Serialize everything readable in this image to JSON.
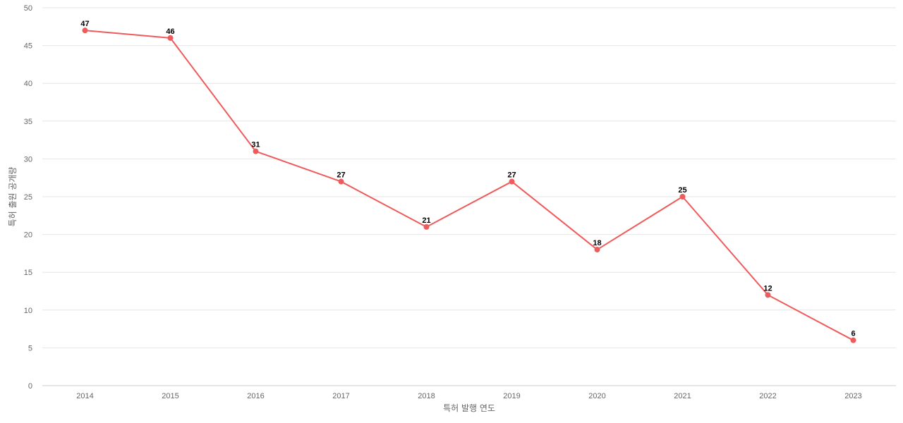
{
  "chart_data": {
    "type": "line",
    "title": "",
    "xlabel": "특허 발행 연도",
    "ylabel": "특허 출원 공개량",
    "x": [
      "2014",
      "2015",
      "2016",
      "2017",
      "2018",
      "2019",
      "2020",
      "2021",
      "2022",
      "2023"
    ],
    "series": [
      {
        "values": [
          47,
          46,
          31,
          27,
          21,
          27,
          18,
          25,
          12,
          6
        ],
        "color": "#ef5b5b"
      }
    ],
    "ylim": [
      0,
      50
    ],
    "yticks": [
      0,
      5,
      10,
      15,
      20,
      25,
      30,
      35,
      40,
      45,
      50
    ],
    "grid": true,
    "legend": "none",
    "data_labels": true
  }
}
